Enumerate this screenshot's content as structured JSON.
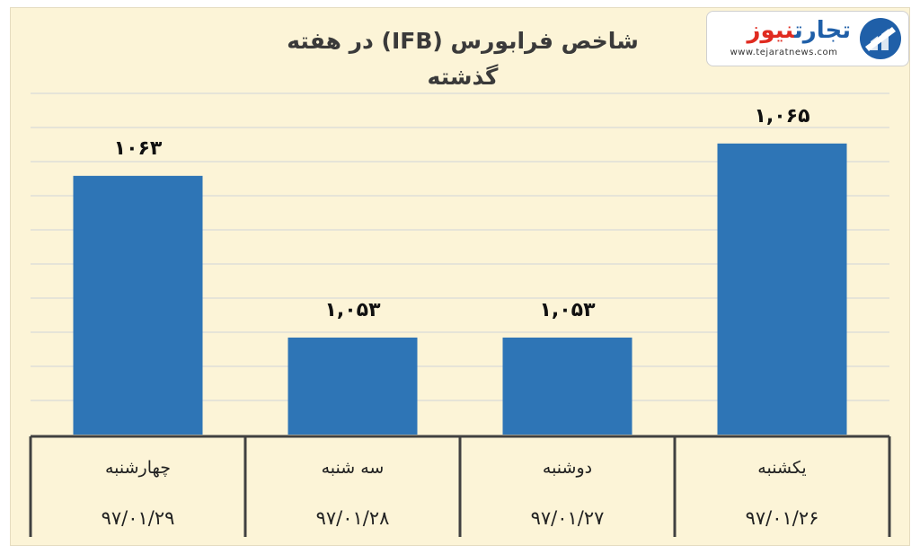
{
  "logo": {
    "word1": "تجارت",
    "word2": "نیوز",
    "url": "www.tejaratnews.com",
    "icon": "tejarat-news-logo-icon",
    "colors": {
      "blue": "#1f5fa8",
      "red": "#e02b20"
    }
  },
  "chart_data": {
    "type": "bar",
    "title": "شاخص فرابورس (IFB) در هفته گذشته",
    "categories": [
      "یکشنبه",
      "دوشنبه",
      "سه شنبه",
      "چهارشنبه"
    ],
    "dates": [
      "۹۷/۰۱/۲۶",
      "۹۷/۰۱/۲۷",
      "۹۷/۰۱/۲۸",
      "۹۷/۰۱/۲۹"
    ],
    "values": [
      1065,
      1053,
      1053,
      1063
    ],
    "data_labels": [
      "۱,۰۶۵",
      "۱,۰۵۳",
      "۱,۰۵۳",
      "۱۰۶۳"
    ],
    "ylim": [
      1047,
      1068.1
    ],
    "grid": true,
    "legend": "none",
    "colors": {
      "bar": "#2e75b6",
      "background": "#fcf4d7",
      "grid": "#d9d9d9",
      "table_border": "#404040"
    }
  }
}
